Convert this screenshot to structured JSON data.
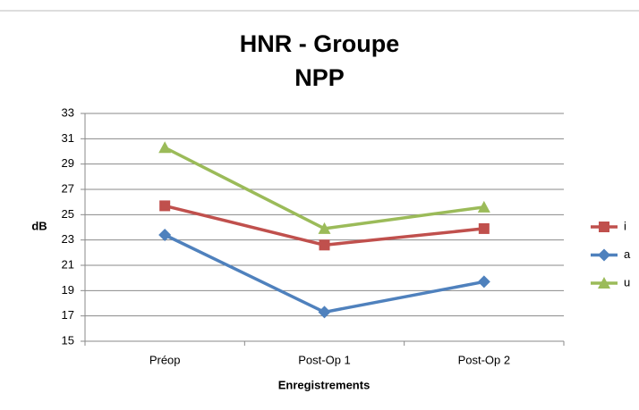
{
  "chart_data": {
    "type": "line",
    "title": "HNR - Groupe\nNPP",
    "x_label": "Enregistrements",
    "y_label": "dB",
    "categories": [
      "Préop",
      "Post-Op 1",
      "Post-Op 2"
    ],
    "series": [
      {
        "name": "i",
        "color": "#c0504d",
        "marker": "square",
        "values": [
          25.7,
          22.6,
          23.9
        ]
      },
      {
        "name": "a",
        "color": "#4f81bd",
        "marker": "diamond",
        "values": [
          23.4,
          17.3,
          19.7
        ]
      },
      {
        "name": "u",
        "color": "#9bbb59",
        "marker": "triangle",
        "values": [
          30.3,
          23.9,
          25.6
        ]
      }
    ],
    "ylim": [
      15,
      33
    ],
    "yticks": [
      15,
      17,
      19,
      21,
      23,
      25,
      27,
      29,
      31,
      33
    ],
    "grid": true,
    "legend": "right"
  }
}
